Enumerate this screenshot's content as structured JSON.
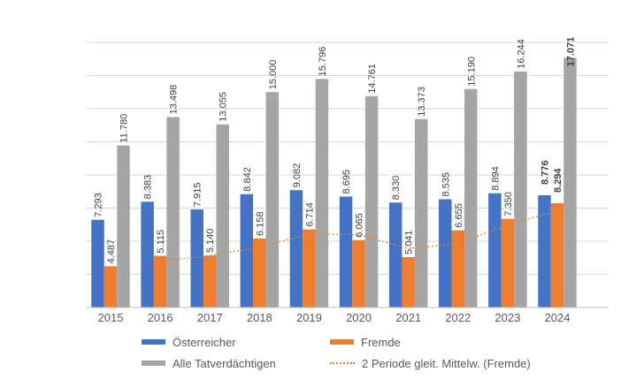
{
  "chart_data": {
    "type": "bar",
    "title": "",
    "categories": [
      "2015",
      "2016",
      "2017",
      "2018",
      "2019",
      "2020",
      "2021",
      "2022",
      "2023",
      "2024"
    ],
    "series": [
      {
        "name": "Österreicher",
        "color": "#4472C4",
        "values": [
          7293,
          8383,
          7915,
          8842,
          9082,
          8695,
          8330,
          8535,
          8894,
          8776
        ],
        "labels": [
          "7.293",
          "8.383",
          "7.915",
          "8.842",
          "9.082",
          "8.695",
          "8.330",
          "8.535",
          "8.894",
          "8.776"
        ]
      },
      {
        "name": "Fremde",
        "color": "#ED7D31",
        "values": [
          4487,
          5115,
          5140,
          6158,
          6714,
          6065,
          5041,
          6655,
          7350,
          8294
        ],
        "labels": [
          "4.487",
          "5.115",
          "5.140",
          "6.158",
          "6.714",
          "6.065",
          "5.041",
          "6.655",
          "7.350",
          "8.294"
        ]
      },
      {
        "name": "Alle Tatverdächtigen",
        "color": "#A5A5A5",
        "values": [
          11780,
          13498,
          13055,
          15000,
          15796,
          14761,
          13373,
          15190,
          16244,
          17071
        ],
        "labels": [
          "11.780",
          "13.498",
          "13.055",
          "15.000",
          "15.796",
          "14.761",
          "13.373",
          "15.190",
          "16.244",
          "17.071"
        ]
      }
    ],
    "trendline": {
      "name": "2 Periode gleit. Mittelw. (Fremde)",
      "color": "#ED7D31",
      "style": "dotted",
      "x": [
        "2016",
        "2017",
        "2018",
        "2019",
        "2020",
        "2021",
        "2022",
        "2023",
        "2024"
      ],
      "values": [
        4801,
        5127.5,
        5649,
        6436,
        6389.5,
        5553,
        5848,
        7002.5,
        7822
      ]
    },
    "ylim": [
      2000,
      18000
    ],
    "gridline_step": 2000,
    "y_axis_labels_visible": false,
    "grid": true,
    "legend_position": "bottom",
    "data_label_rotation": 90,
    "last_category_labels_bold": true,
    "colors": {
      "gridline": "#D9D9D9",
      "axis_line": "#BFBFBF",
      "data_label": "#404040",
      "axis_text": "#595959"
    }
  }
}
